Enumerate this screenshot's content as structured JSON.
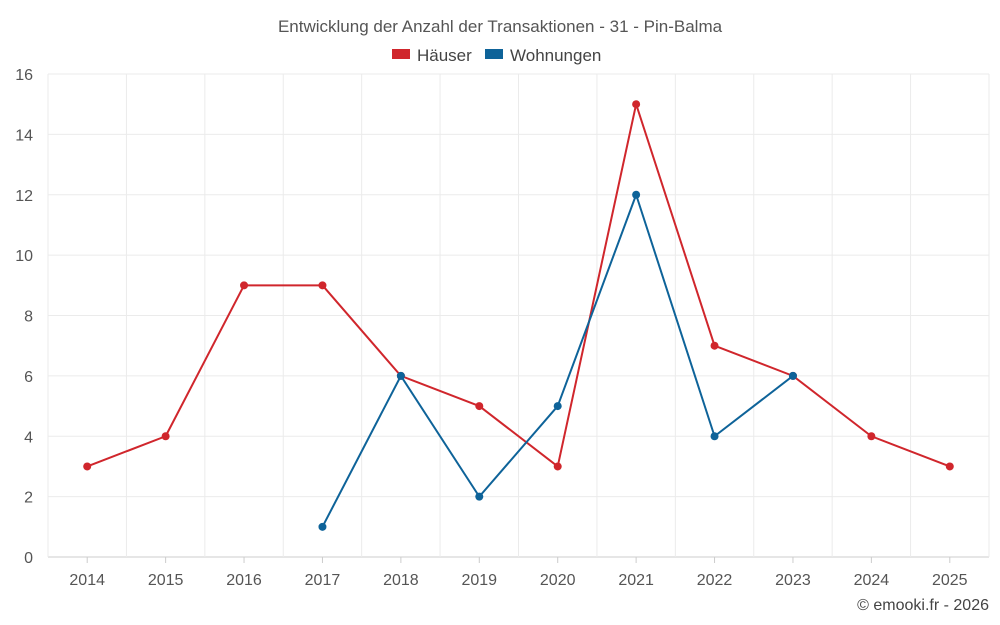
{
  "chart_data": {
    "type": "line",
    "title": "Entwicklung der Anzahl der Transaktionen - 31 - Pin-Balma",
    "x": [
      "2014",
      "2015",
      "2016",
      "2017",
      "2018",
      "2019",
      "2020",
      "2021",
      "2022",
      "2023",
      "2024",
      "2025"
    ],
    "yticks": [
      "0",
      "2",
      "4",
      "6",
      "8",
      "10",
      "12",
      "14",
      "16"
    ],
    "ylim": [
      0,
      16
    ],
    "grid": true,
    "legend_position": "top-center",
    "series": [
      {
        "name": "Häuser",
        "color": "#d0262c",
        "values": [
          3,
          4,
          9,
          9,
          6,
          5,
          3,
          15,
          7,
          6,
          4,
          3
        ]
      },
      {
        "name": "Wohnungen",
        "color": "#0e6399",
        "values": [
          null,
          null,
          null,
          1,
          6,
          2,
          5,
          12,
          4,
          6,
          null,
          null
        ]
      }
    ]
  },
  "credit": "© emooki.fr - 2026"
}
